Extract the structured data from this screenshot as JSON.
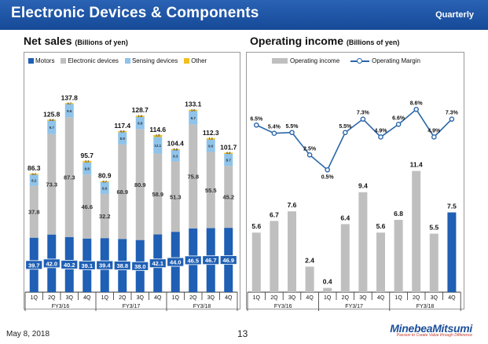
{
  "header": {
    "title": "Electronic Devices & Components",
    "period": "Quarterly"
  },
  "left_title": {
    "main": "Net sales",
    "unit": "(Billions of yen)"
  },
  "right_title": {
    "main": "Operating income",
    "unit": "(Billions of yen)"
  },
  "footer": {
    "date": "May 8, 2018",
    "page": "13",
    "brand": "MinebeaMitsumi",
    "tagline": "Passion to Create Value through Difference"
  },
  "legend_left": [
    "Motors",
    "Electronic devices",
    "Sensing devices",
    "Other"
  ],
  "legend_right": [
    "Operating income",
    "Operating Margin"
  ],
  "colors": {
    "motors": "#1f5fb4",
    "electronic": "#bfbfbf",
    "sensing": "#8fc3ea",
    "other": "#f0c020",
    "income": "#bfbfbf",
    "highlight": "#1f5fb4",
    "margin_line": "#2a66a8"
  },
  "chart_data": [
    {
      "type": "bar",
      "stacked": true,
      "title": "Net sales",
      "ylabel": "Billions of yen",
      "categories": [
        "1Q",
        "2Q",
        "3Q",
        "4Q",
        "1Q",
        "2Q",
        "3Q",
        "4Q",
        "1Q",
        "2Q",
        "3Q",
        "4Q"
      ],
      "groups": [
        "FY3/16",
        "FY3/17",
        "FY3/18"
      ],
      "series": [
        {
          "name": "Motors",
          "values": [
            39.7,
            42.0,
            40.2,
            39.1,
            39.4,
            38.8,
            38.0,
            42.1,
            44.0,
            46.5,
            46.7,
            46.9
          ]
        },
        {
          "name": "Electronic devices",
          "values": [
            37.8,
            73.3,
            87.3,
            46.6,
            32.2,
            68.9,
            80.9,
            58.9,
            51.3,
            75.8,
            55.5,
            45.2
          ]
        },
        {
          "name": "Sensing devices",
          "values": [
            8.2,
            9.7,
            9.6,
            8.8,
            8.6,
            8.9,
            8.8,
            12.1,
            8.3,
            9.7,
            9.0,
            8.7
          ]
        },
        {
          "name": "Other",
          "values": [
            0.7,
            0.8,
            0.7,
            1.2,
            0.7,
            0.9,
            1.0,
            1.5,
            0.8,
            1.0,
            1.1,
            0.9
          ]
        }
      ],
      "totals": [
        86.3,
        125.8,
        137.8,
        95.7,
        80.9,
        117.4,
        128.7,
        114.6,
        104.4,
        133.1,
        112.3,
        101.7
      ],
      "ylim": [
        0,
        150
      ]
    },
    {
      "type": "bar+line",
      "title": "Operating income",
      "categories": [
        "1Q",
        "2Q",
        "3Q",
        "4Q",
        "1Q",
        "2Q",
        "3Q",
        "4Q",
        "1Q",
        "2Q",
        "3Q",
        "4Q"
      ],
      "groups": [
        "FY3/16",
        "FY3/17",
        "FY3/18"
      ],
      "series": [
        {
          "name": "Operating income",
          "values": [
            5.6,
            6.7,
            7.6,
            2.4,
            0.4,
            6.4,
            9.4,
            5.6,
            6.8,
            11.4,
            5.5,
            7.5
          ]
        },
        {
          "name": "Operating Margin",
          "values": [
            6.5,
            5.4,
            5.5,
            2.5,
            0.5,
            5.5,
            7.3,
            4.9,
            6.6,
            8.6,
            4.9,
            7.3
          ],
          "labels": [
            "6.5%",
            "5.4%",
            "5.5%",
            "2.5%",
            "0.5%",
            "5.5%",
            "7.3%",
            "4.9%",
            "6.6%",
            "8.6%",
            "4.9%",
            "7.3%"
          ]
        }
      ],
      "highlight_index": 11,
      "ylim_income": [
        0,
        13
      ],
      "ylim_margin": [
        0,
        10
      ]
    }
  ]
}
